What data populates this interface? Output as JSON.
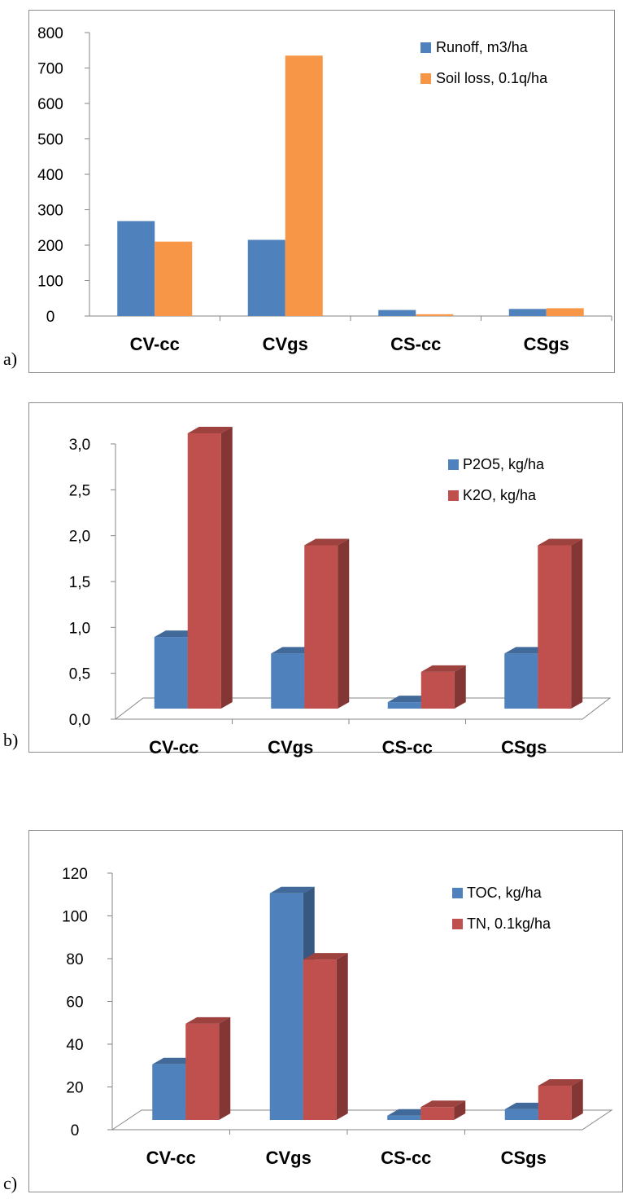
{
  "figure": {
    "panels": [
      "a)",
      "b)",
      "c)"
    ]
  },
  "chart_data": [
    {
      "type": "bar",
      "style": "2d",
      "categories": [
        "CV-cc",
        "CVgs",
        "CS-cc",
        "CSgs"
      ],
      "yticks": [
        "0",
        "100",
        "200",
        "300",
        "400",
        "500",
        "600",
        "700",
        "800"
      ],
      "ylim": [
        0,
        800
      ],
      "grid": false,
      "legend": "top-right",
      "series": [
        {
          "name": "Runoff,  m3/ha",
          "color": "#4f81bd",
          "values": [
            268,
            215,
            17,
            20
          ]
        },
        {
          "name": "Soil loss, 0.1q/ha",
          "color": "#f79646",
          "values": [
            210,
            735,
            5,
            22
          ]
        }
      ]
    },
    {
      "type": "bar",
      "style": "3d",
      "categories": [
        "CV-cc",
        "CVgs",
        "CS-cc",
        "CSgs"
      ],
      "yticks": [
        "0,0",
        "0,5",
        "1,0",
        "1,5",
        "2,0",
        "2,5",
        "3,0"
      ],
      "ylim": [
        0,
        3
      ],
      "grid": false,
      "legend": "top-right",
      "series": [
        {
          "name": "P2O5, kg/ha",
          "color": "#4f81bd",
          "values": [
            0.78,
            0.6,
            0.07,
            0.6
          ]
        },
        {
          "name": "K2O, kg/ha",
          "color": "#c0504d",
          "values": [
            3.0,
            1.78,
            0.4,
            1.78
          ]
        }
      ]
    },
    {
      "type": "bar",
      "style": "3d",
      "categories": [
        "CV-cc",
        "CVgs",
        "CS-cc",
        "CSgs"
      ],
      "yticks": [
        "0",
        "20",
        "40",
        "60",
        "80",
        "100",
        "120"
      ],
      "ylim": [
        0,
        120
      ],
      "grid": false,
      "legend": "top-right",
      "series": [
        {
          "name": "TOC, kg/ha",
          "color": "#4f81bd",
          "values": [
            26,
            106,
            2,
            5
          ]
        },
        {
          "name": "TN, 0.1kg/ha",
          "color": "#c0504d",
          "values": [
            45,
            75,
            6,
            16
          ]
        }
      ]
    }
  ]
}
